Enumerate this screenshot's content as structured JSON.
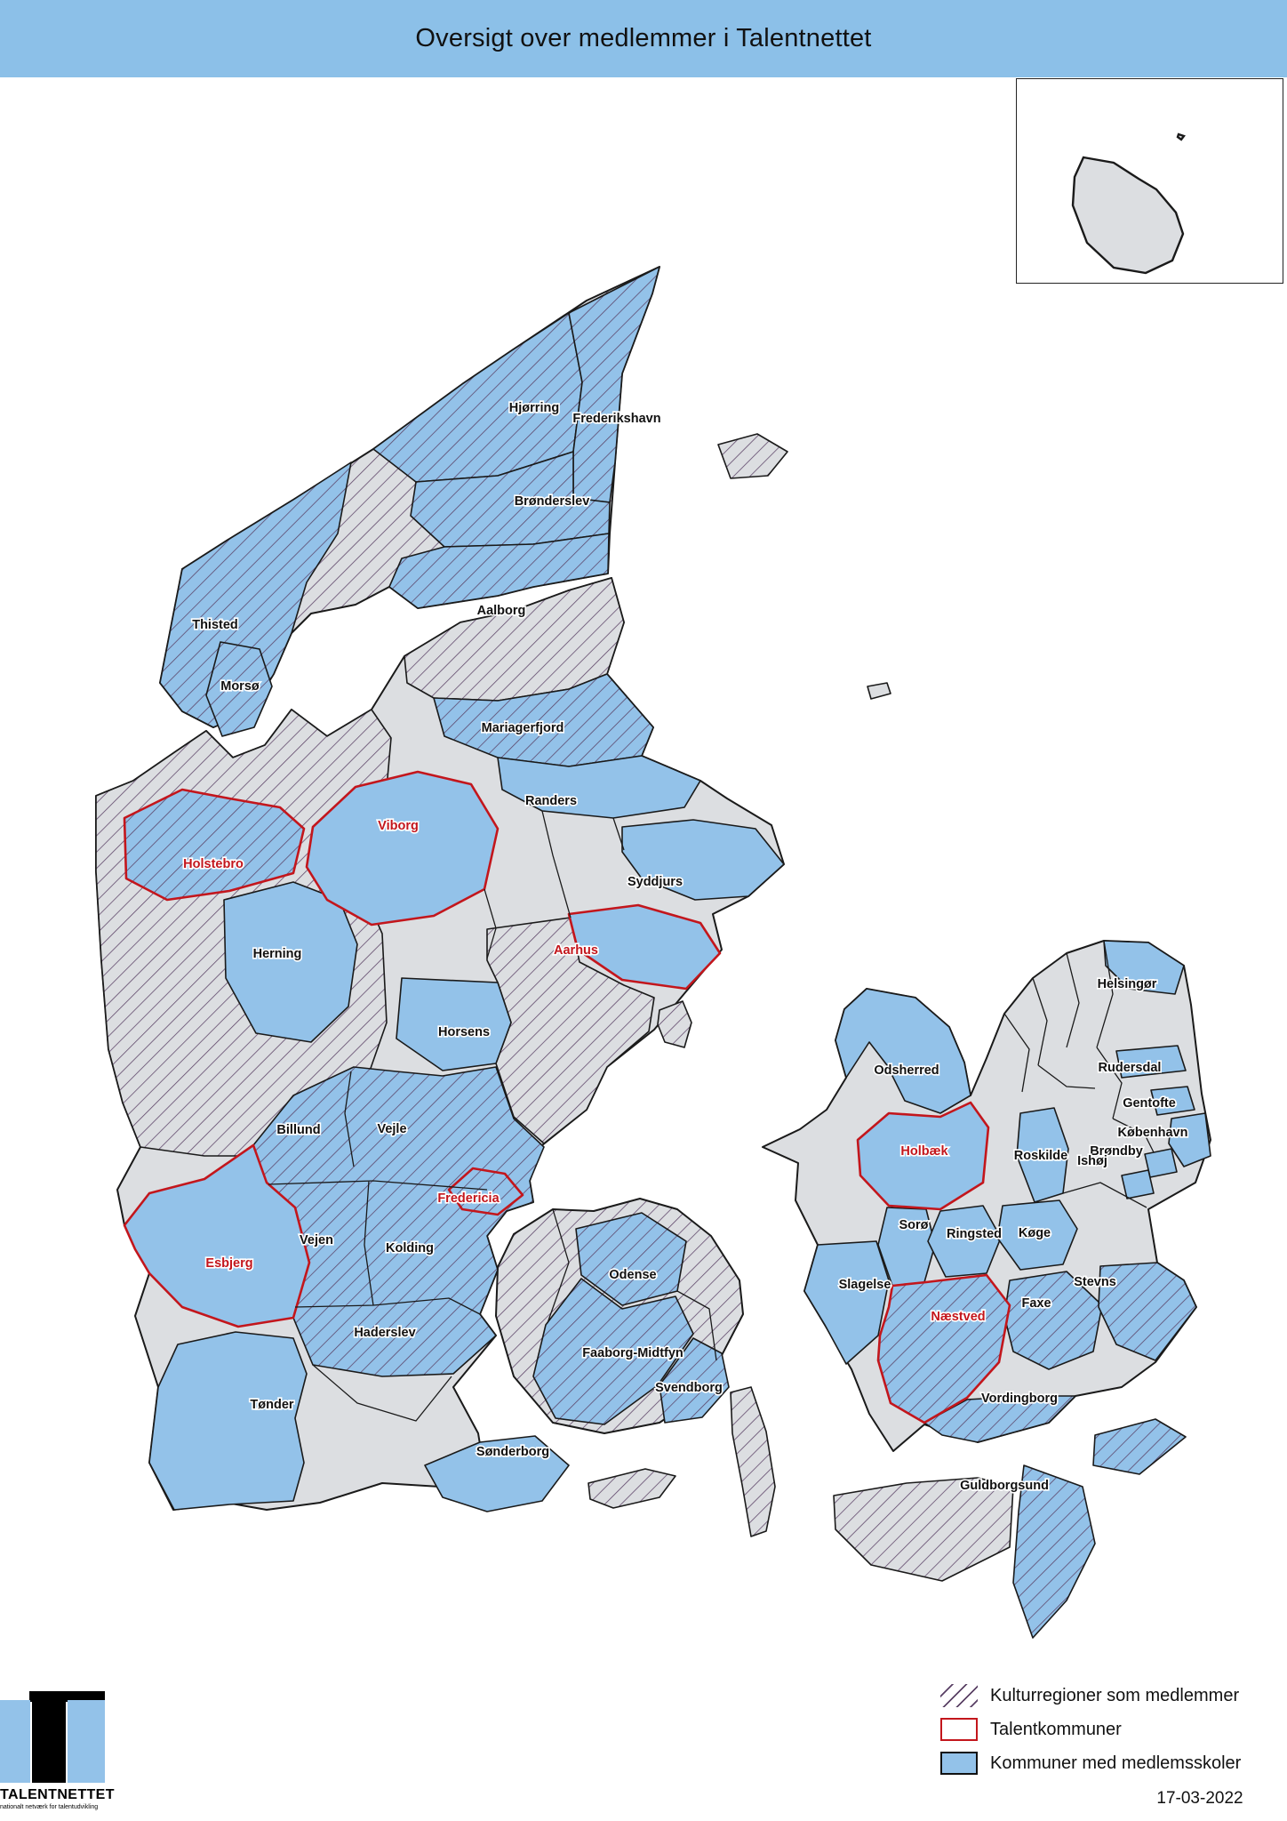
{
  "title": "Oversigt over medlemmer i Talentnettet",
  "date": "17-03-2022",
  "logo": {
    "name": "TALENTNETTET",
    "tagline": "nationalt netværk for talentudvikling"
  },
  "legend": {
    "items": [
      {
        "key": "kulturregion",
        "swatch": "hatch",
        "label": "Kulturregioner som medlemmer"
      },
      {
        "key": "talentkommune",
        "swatch": "red",
        "label": "Talentkommuner"
      },
      {
        "key": "medlemsskole",
        "swatch": "blue",
        "label": "Kommuner med medlemsskoler"
      }
    ]
  },
  "colors": {
    "banner_blue": "#8cc0e8",
    "municipality_blue": "#93c2e9",
    "kulturregion_gray": "#dcdee1",
    "hatch_line": "#5a4165",
    "talent_red": "#c3161c",
    "coast_black": "#1a1a1a"
  },
  "map": {
    "regions": [
      {
        "id": "jylland_base",
        "label": "",
        "fill": "gray",
        "talent": false
      },
      {
        "id": "vendsyssel_base",
        "label": "",
        "fill": "gray_hatch",
        "talent": false
      },
      {
        "id": "midtvest",
        "label": "",
        "fill": "gray_hatch",
        "talent": false
      },
      {
        "id": "himmerland",
        "label": "",
        "fill": "gray_hatch",
        "talent": false
      },
      {
        "id": "oestjylland",
        "label": "",
        "fill": "gray_hatch",
        "talent": false
      },
      {
        "id": "fyn_base",
        "label": "",
        "fill": "gray_hatch",
        "talent": false
      },
      {
        "id": "sjaelland_base",
        "label": "",
        "fill": "gray",
        "talent": false
      },
      {
        "id": "lolland",
        "label": "",
        "fill": "gray_hatch",
        "talent": false
      },
      {
        "id": "langeland",
        "label": "",
        "fill": "gray_hatch",
        "talent": false
      },
      {
        "id": "aeroe",
        "label": "",
        "fill": "gray_hatch",
        "talent": false
      },
      {
        "id": "samsoe",
        "label": "",
        "fill": "gray_hatch",
        "talent": false
      },
      {
        "id": "laesoe",
        "label": "",
        "fill": "gray_hatch",
        "talent": false
      },
      {
        "id": "anholt",
        "label": "",
        "fill": "gray",
        "talent": false
      },
      {
        "id": "hjoerring",
        "label": "Hjørring",
        "fill": "blue_hatch",
        "talent": false
      },
      {
        "id": "frederikshavn",
        "label": "Frederikshavn",
        "fill": "blue_hatch",
        "talent": false
      },
      {
        "id": "broenderslev",
        "label": "Brønderslev",
        "fill": "blue_hatch",
        "talent": false
      },
      {
        "id": "aalborg",
        "label": "Aalborg",
        "fill": "blue_hatch",
        "talent": false
      },
      {
        "id": "thisted",
        "label": "Thisted",
        "fill": "blue_hatch",
        "talent": false
      },
      {
        "id": "morsoe",
        "label": "Morsø",
        "fill": "blue_hatch",
        "talent": false
      },
      {
        "id": "mariagerfjord",
        "label": "Mariagerfjord",
        "fill": "blue_hatch",
        "talent": false
      },
      {
        "id": "randers",
        "label": "Randers",
        "fill": "blue",
        "talent": false
      },
      {
        "id": "syddjurs",
        "label": "Syddjurs",
        "fill": "blue",
        "talent": false
      },
      {
        "id": "herning",
        "label": "Herning",
        "fill": "blue",
        "talent": false
      },
      {
        "id": "horsens",
        "label": "Horsens",
        "fill": "blue",
        "talent": false
      },
      {
        "id": "billund_vejle_vejen_kolding_haderslev",
        "label": "",
        "fill": "blue_hatch",
        "talent": false
      },
      {
        "id": "toender",
        "label": "Tønder",
        "fill": "blue",
        "talent": false
      },
      {
        "id": "soenderborg",
        "label": "Sønderborg",
        "fill": "blue",
        "talent": false
      },
      {
        "id": "odense",
        "label": "Odense",
        "fill": "blue_hatch",
        "talent": false
      },
      {
        "id": "faaborg",
        "label": "Faaborg-Midtfyn",
        "fill": "blue_hatch",
        "talent": false
      },
      {
        "id": "svendborg",
        "label": "Svendborg",
        "fill": "blue_hatch",
        "talent": false
      },
      {
        "id": "odsherred",
        "label": "Odsherred",
        "fill": "blue",
        "talent": false
      },
      {
        "id": "roskilde",
        "label": "Roskilde",
        "fill": "blue",
        "talent": false
      },
      {
        "id": "helsingoer",
        "label": "Helsingør",
        "fill": "blue",
        "talent": false
      },
      {
        "id": "rudersdal",
        "label": "Rudersdal",
        "fill": "blue",
        "talent": false
      },
      {
        "id": "gentofte",
        "label": "Gentofte",
        "fill": "blue",
        "talent": false
      },
      {
        "id": "koebenhavn",
        "label": "København",
        "fill": "blue",
        "talent": false
      },
      {
        "id": "broendby",
        "label": "Brøndby",
        "fill": "blue",
        "talent": false
      },
      {
        "id": "ishoej",
        "label": "Ishøj",
        "fill": "blue",
        "talent": false
      },
      {
        "id": "soroe",
        "label": "Sorø",
        "fill": "blue",
        "talent": false
      },
      {
        "id": "ringsted",
        "label": "Ringsted",
        "fill": "blue",
        "talent": false
      },
      {
        "id": "koege",
        "label": "Køge",
        "fill": "blue",
        "talent": false
      },
      {
        "id": "slagelse",
        "label": "Slagelse",
        "fill": "blue",
        "talent": false
      },
      {
        "id": "faxe",
        "label": "Faxe",
        "fill": "blue_hatch",
        "talent": false
      },
      {
        "id": "stevns",
        "label": "Stevns",
        "fill": "blue_hatch",
        "talent": false
      },
      {
        "id": "vordingborg",
        "label": "Vordingborg",
        "fill": "blue_hatch",
        "talent": false
      },
      {
        "id": "guldborgsund",
        "label": "Guldborgsund",
        "fill": "blue_hatch",
        "talent": false
      },
      {
        "id": "viborg",
        "label": "Viborg",
        "fill": "blue",
        "talent": true
      },
      {
        "id": "holstebro",
        "label": "Holstebro",
        "fill": "blue_hatch",
        "talent": true
      },
      {
        "id": "aarhus",
        "label": "Aarhus",
        "fill": "blue",
        "talent": true
      },
      {
        "id": "fredericia",
        "label": "Fredericia",
        "fill": "blue_hatch",
        "talent": true
      },
      {
        "id": "esbjerg",
        "label": "Esbjerg",
        "fill": "blue",
        "talent": true
      },
      {
        "id": "holbaek",
        "label": "Holbæk",
        "fill": "blue",
        "talent": true
      },
      {
        "id": "naestved",
        "label": "Næstved",
        "fill": "blue_hatch",
        "talent": true
      },
      {
        "id": "billund",
        "label": "Billund",
        "fill": "none",
        "talent": false
      },
      {
        "id": "vejle",
        "label": "Vejle",
        "fill": "none",
        "talent": false
      },
      {
        "id": "vejen",
        "label": "Vejen",
        "fill": "none",
        "talent": false
      },
      {
        "id": "kolding",
        "label": "Kolding",
        "fill": "none",
        "talent": false
      },
      {
        "id": "haderslev",
        "label": "Haderslev",
        "fill": "none",
        "talent": false
      }
    ]
  },
  "inset": {
    "regions": [
      {
        "id": "bornholm",
        "fill": "gray"
      },
      {
        "id": "ertholmene",
        "fill": "gray"
      }
    ]
  }
}
